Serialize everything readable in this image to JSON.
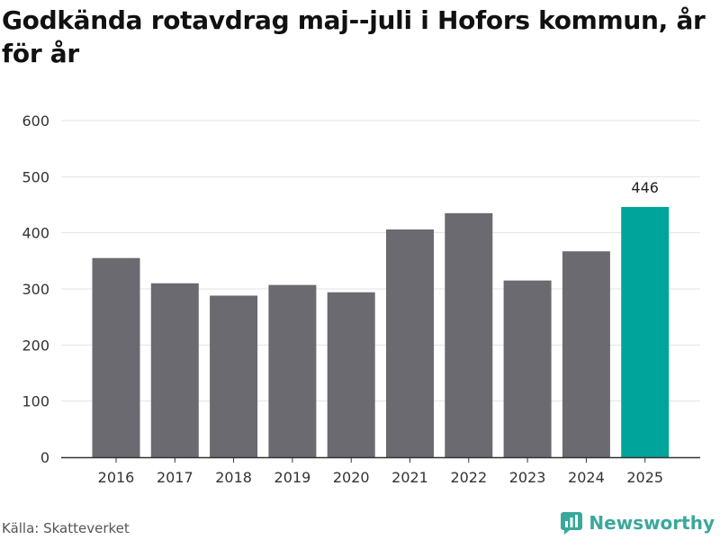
{
  "title": "Godkända rotavdrag maj--juli i Hofors kommun, år för år",
  "source": "Källa: Skatteverket",
  "brand": "Newsworthy",
  "colors": {
    "bar_default": "#6b6a70",
    "bar_highlight": "#00a49a",
    "grid": "#e3e3e3",
    "axis": "#333333",
    "brand": "#3aa89a"
  },
  "chart_data": {
    "type": "bar",
    "categories": [
      "2016",
      "2017",
      "2018",
      "2019",
      "2020",
      "2021",
      "2022",
      "2023",
      "2024",
      "2025"
    ],
    "values": [
      355,
      310,
      288,
      307,
      294,
      406,
      435,
      315,
      367,
      446
    ],
    "highlight_index": 9,
    "data_labels": [
      {
        "index": 9,
        "text": "446"
      }
    ],
    "y_ticks": [
      "0",
      "100",
      "200",
      "300",
      "400",
      "500",
      "600"
    ],
    "ylim": [
      0,
      600
    ],
    "xlabel": "",
    "ylabel": "",
    "grid": true
  }
}
